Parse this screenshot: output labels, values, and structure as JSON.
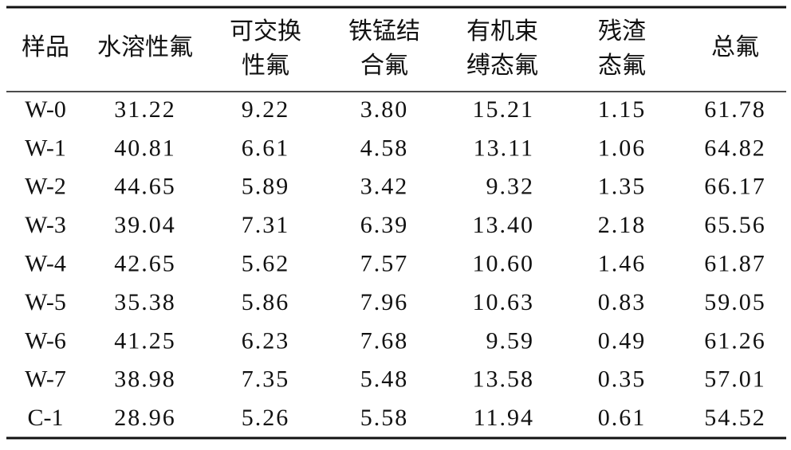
{
  "table": {
    "headers": [
      [
        "样品"
      ],
      [
        "水溶性氟"
      ],
      [
        "可交换",
        "性氟"
      ],
      [
        "铁锰结",
        "合氟"
      ],
      [
        "有机束",
        "缚态氟"
      ],
      [
        "残渣",
        "态氟"
      ],
      [
        "总氟"
      ]
    ],
    "rows": [
      [
        "W-0",
        "31.22",
        "9.22",
        "3.80",
        "15.21",
        "1.15",
        "61.78"
      ],
      [
        "W-1",
        "40.81",
        "6.61",
        "4.58",
        "13.11",
        "1.06",
        "64.82"
      ],
      [
        "W-2",
        "44.65",
        "5.89",
        "3.42",
        "9.32",
        "1.35",
        "66.17"
      ],
      [
        "W-3",
        "39.04",
        "7.31",
        "6.39",
        "13.40",
        "2.18",
        "65.56"
      ],
      [
        "W-4",
        "42.65",
        "5.62",
        "7.57",
        "10.60",
        "1.46",
        "61.87"
      ],
      [
        "W-5",
        "35.38",
        "5.86",
        "7.96",
        "10.63",
        "0.83",
        "59.05"
      ],
      [
        "W-6",
        "41.25",
        "6.23",
        "7.68",
        "9.59",
        "0.49",
        "61.26"
      ],
      [
        "W-7",
        "38.98",
        "7.35",
        "5.48",
        "13.58",
        "0.35",
        "57.01"
      ],
      [
        "C-1",
        "28.96",
        "5.26",
        "5.58",
        "11.94",
        "0.61",
        "54.52"
      ]
    ]
  }
}
